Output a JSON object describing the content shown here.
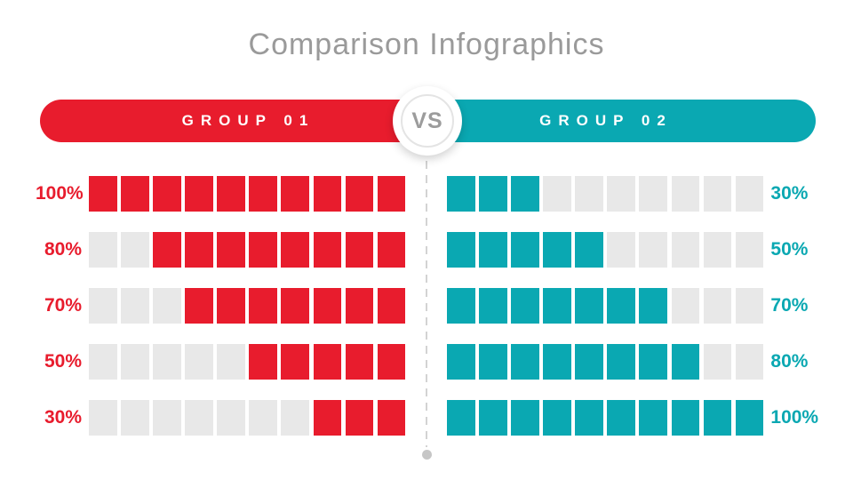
{
  "title": "Comparison Infographics",
  "vs_label": "VS",
  "squares_per_row": 10,
  "colors": {
    "group1": "#E81C2D",
    "group2": "#0AA8B2",
    "empty_square": "#E8E8E8",
    "title_text": "#9A9A9A",
    "vs_text": "#9C9C9C",
    "vs_ring": "#E4E4E4",
    "divider": "#D3D3D3",
    "divider_dot": "#C6C6C6"
  },
  "groups": [
    {
      "label": "GROUP 01",
      "side": "left",
      "color": "#E81C2D",
      "fill_from": "right",
      "rows": [
        {
          "label": "100%",
          "value": 100
        },
        {
          "label": "80%",
          "value": 80
        },
        {
          "label": "70%",
          "value": 70
        },
        {
          "label": "50%",
          "value": 50
        },
        {
          "label": "30%",
          "value": 30
        }
      ]
    },
    {
      "label": "GROUP 02",
      "side": "right",
      "color": "#0AA8B2",
      "fill_from": "left",
      "rows": [
        {
          "label": "30%",
          "value": 30
        },
        {
          "label": "50%",
          "value": 50
        },
        {
          "label": "70%",
          "value": 70
        },
        {
          "label": "80%",
          "value": 80
        },
        {
          "label": "100%",
          "value": 100
        }
      ]
    }
  ],
  "chart_data": {
    "type": "bar",
    "title": "Comparison Infographics",
    "units": "percent",
    "max_value": 100,
    "squares_per_row": 10,
    "categories": [
      "row-1",
      "row-2",
      "row-3",
      "row-4",
      "row-5"
    ],
    "series": [
      {
        "name": "GROUP 01",
        "values": [
          100,
          80,
          70,
          50,
          30
        ]
      },
      {
        "name": "GROUP 02",
        "values": [
          30,
          50,
          70,
          80,
          100
        ]
      }
    ],
    "legend_position": "top",
    "grid": false
  }
}
